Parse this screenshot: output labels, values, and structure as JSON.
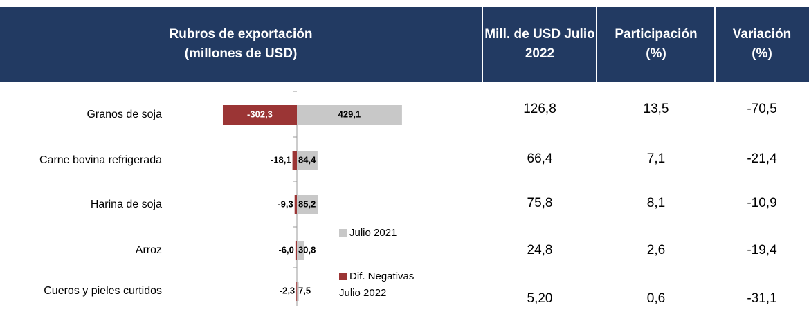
{
  "header": [
    "Rubros de exportación (millones de USD)",
    "Mill. de USD Julio 2022",
    "Participación (%)",
    "Variación (%)"
  ],
  "chart_data": {
    "type": "bar",
    "categories": [
      "Granos de soja",
      "Carne bovina refrigerada",
      "Harina de soja",
      "Arroz",
      "Cueros y pieles curtidos"
    ],
    "series": [
      {
        "name": "Julio 2021",
        "color": "#c8c8c8",
        "values": [
          429.1,
          84.4,
          85.2,
          30.8,
          7.5
        ],
        "value_labels": [
          "429,1",
          "84,4",
          "85,2",
          "30,8",
          "7,5"
        ]
      },
      {
        "name": "Dif. Negativas Julio 2022",
        "color": "#9b3535",
        "values": [
          -302.3,
          -18.1,
          -9.3,
          -6.0,
          -2.3
        ],
        "value_labels": [
          "-302,3",
          "-18,1",
          "-9,3",
          "-6,0",
          "-2,3"
        ]
      }
    ]
  },
  "table": {
    "rows": [
      [
        "126,8",
        "13,5",
        "-70,5"
      ],
      [
        "66,4",
        "7,1",
        "-21,4"
      ],
      [
        "75,8",
        "8,1",
        "-10,9"
      ],
      [
        "24,8",
        "2,6",
        "-19,4"
      ],
      [
        "5,20",
        "0,6",
        "-31,1"
      ]
    ]
  }
}
